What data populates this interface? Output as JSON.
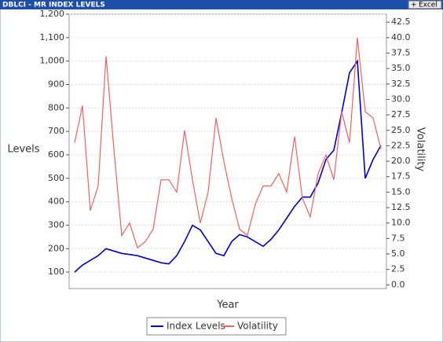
{
  "header": {
    "title": "DBLCI - MR INDEX LEVELS",
    "button": "Excel"
  },
  "chart_data": {
    "type": "line",
    "y_label": "Levels",
    "y2_label": "Volatility",
    "x_label": "Year",
    "ylim": [
      30,
      1200
    ],
    "yticks": [
      100,
      200,
      300,
      400,
      500,
      600,
      700,
      800,
      900,
      {
        "value": 1000,
        "label": "1,000"
      },
      {
        "value": 1100,
        "label": "1,100"
      },
      {
        "value": 1200,
        "label": "1,200"
      }
    ],
    "y2lim": [
      -0.6,
      43.8
    ],
    "y2ticks": [
      {
        "value": 0,
        "label": "0.0"
      },
      2.5,
      {
        "value": 5,
        "label": "5.0"
      },
      7.5,
      {
        "value": 10,
        "label": "10.0"
      },
      12.5,
      {
        "value": 15,
        "label": "15.0"
      },
      17.5,
      {
        "value": 20,
        "label": "20.0"
      },
      22.5,
      {
        "value": 25,
        "label": "25.0"
      },
      27.5,
      {
        "value": 30,
        "label": "30.0"
      },
      32.5,
      {
        "value": 35,
        "label": "35.0"
      },
      37.5,
      {
        "value": 40,
        "label": "40.0"
      },
      42.5
    ],
    "grid": true,
    "legend": "bottom",
    "series": [
      {
        "name": "Index Levels",
        "color": "#0000cc",
        "values": [
          100,
          130,
          150,
          170,
          200,
          190,
          180,
          175,
          170,
          160,
          150,
          140,
          135,
          170,
          230,
          300,
          280,
          230,
          180,
          170,
          230,
          260,
          250,
          230,
          210,
          240,
          280,
          330,
          380,
          420,
          420,
          480,
          580,
          620,
          780,
          950,
          1000,
          500,
          580,
          640
        ]
      },
      {
        "name": "Volatility",
        "color": "#f06060",
        "axis": "y2",
        "values": [
          23,
          29,
          12,
          16,
          37,
          22,
          8,
          10,
          6,
          7,
          9,
          17,
          17,
          15,
          25,
          17,
          10,
          15,
          27,
          20,
          14,
          9,
          8,
          13,
          16,
          16,
          18,
          15,
          24,
          14,
          11,
          18,
          21,
          17,
          28,
          23,
          40,
          28,
          27,
          22
        ]
      }
    ]
  }
}
